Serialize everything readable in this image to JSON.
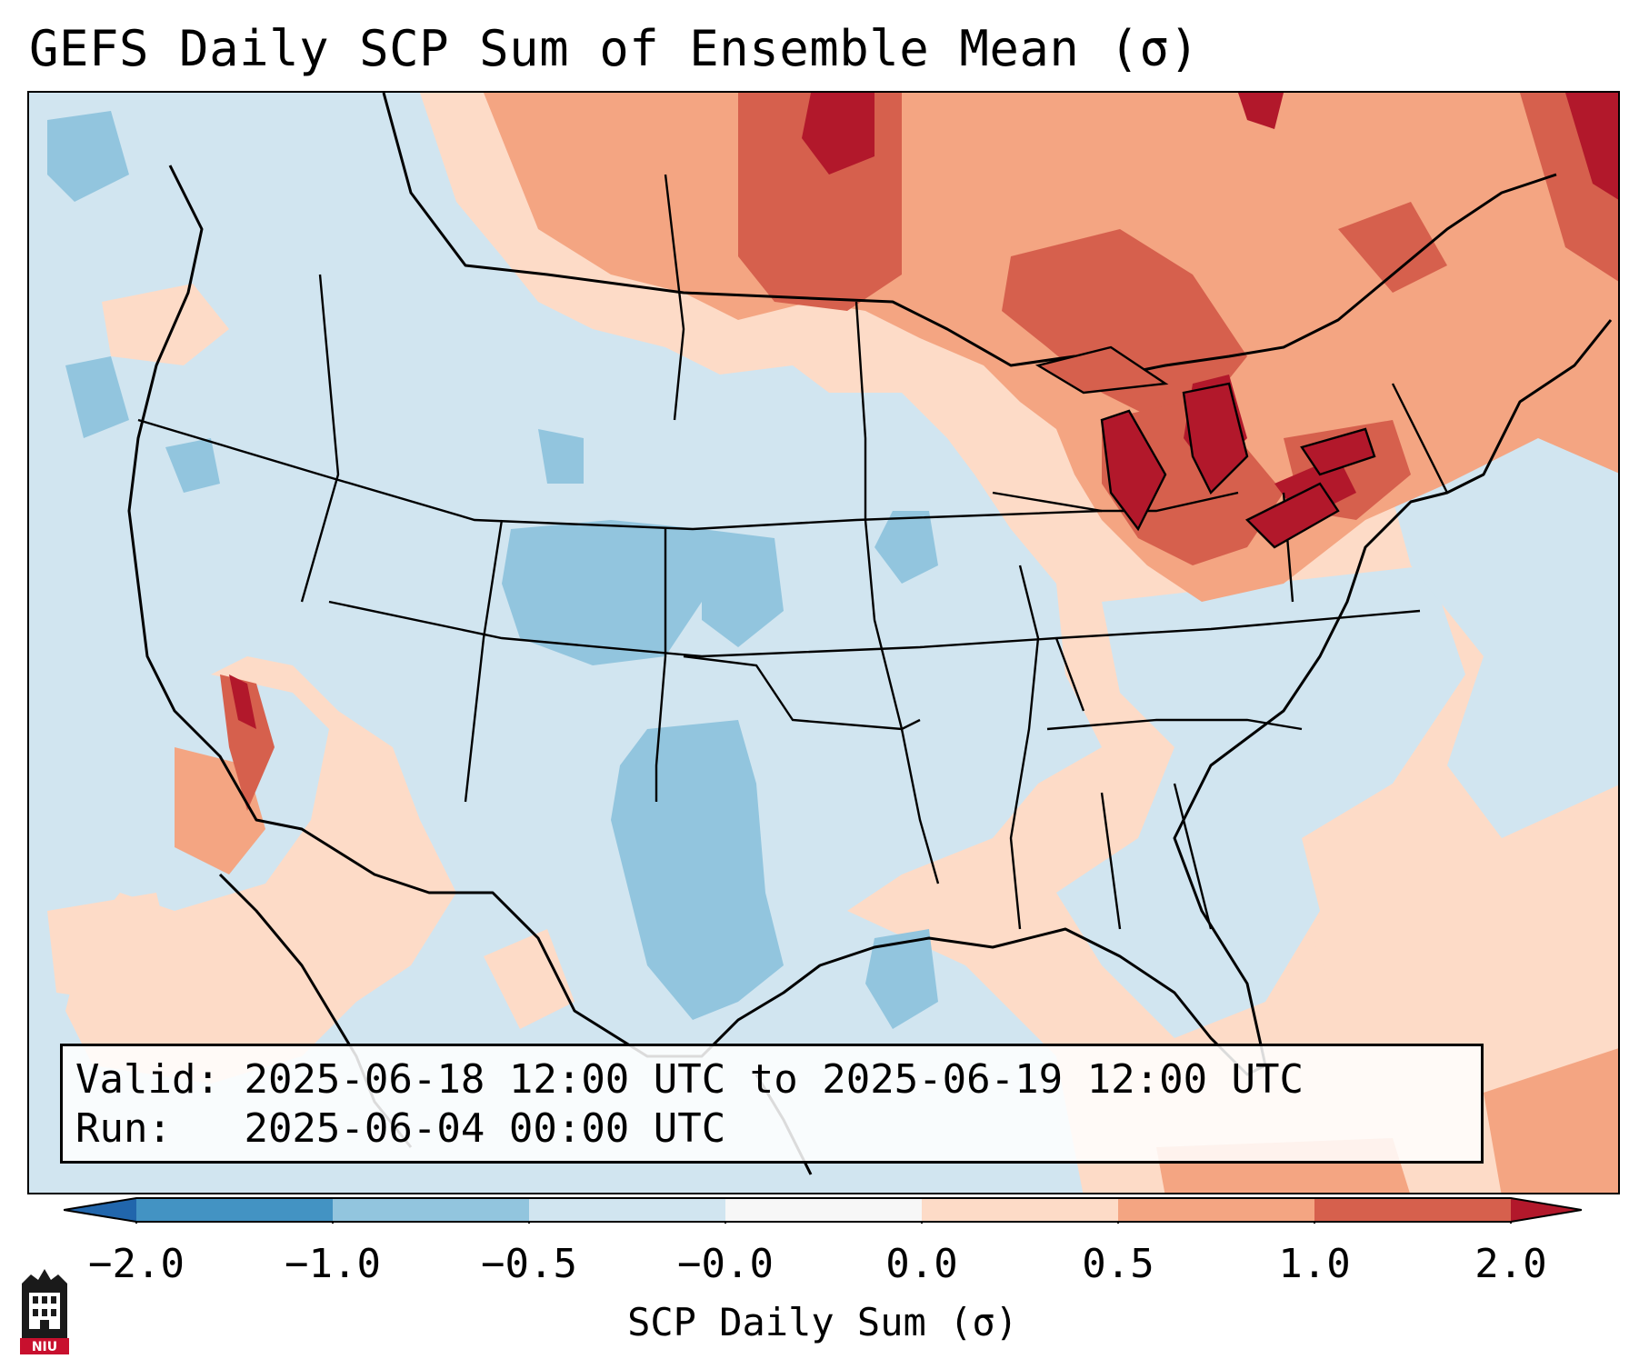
{
  "title": "GEFS Daily SCP Sum of Ensemble Mean (σ)",
  "info": {
    "valid_label": "Valid:",
    "valid_value": "2025-06-18 12:00 UTC to 2025-06-19 12:00 UTC",
    "run_label": "Run:",
    "run_value": "2025-06-04 00:00 UTC"
  },
  "colorbar": {
    "label": "SCP Daily Sum (σ)",
    "ticks": [
      "−2.0",
      "−1.0",
      "−0.5",
      "−0.0",
      "0.0",
      "0.5",
      "1.0",
      "2.0"
    ],
    "colors": [
      "#4393c3",
      "#92c5de",
      "#d1e5f0",
      "#f7f7f7",
      "#fddbc7",
      "#f4a582",
      "#d6604d",
      "#b2182b"
    ],
    "under_color": "#2166ac",
    "over_color": "#b2182b"
  },
  "map": {
    "region": "Continental United States",
    "background_color": "#d1e5f0"
  },
  "logo": {
    "text": "NIU",
    "icon": "niu-logo-icon"
  }
}
